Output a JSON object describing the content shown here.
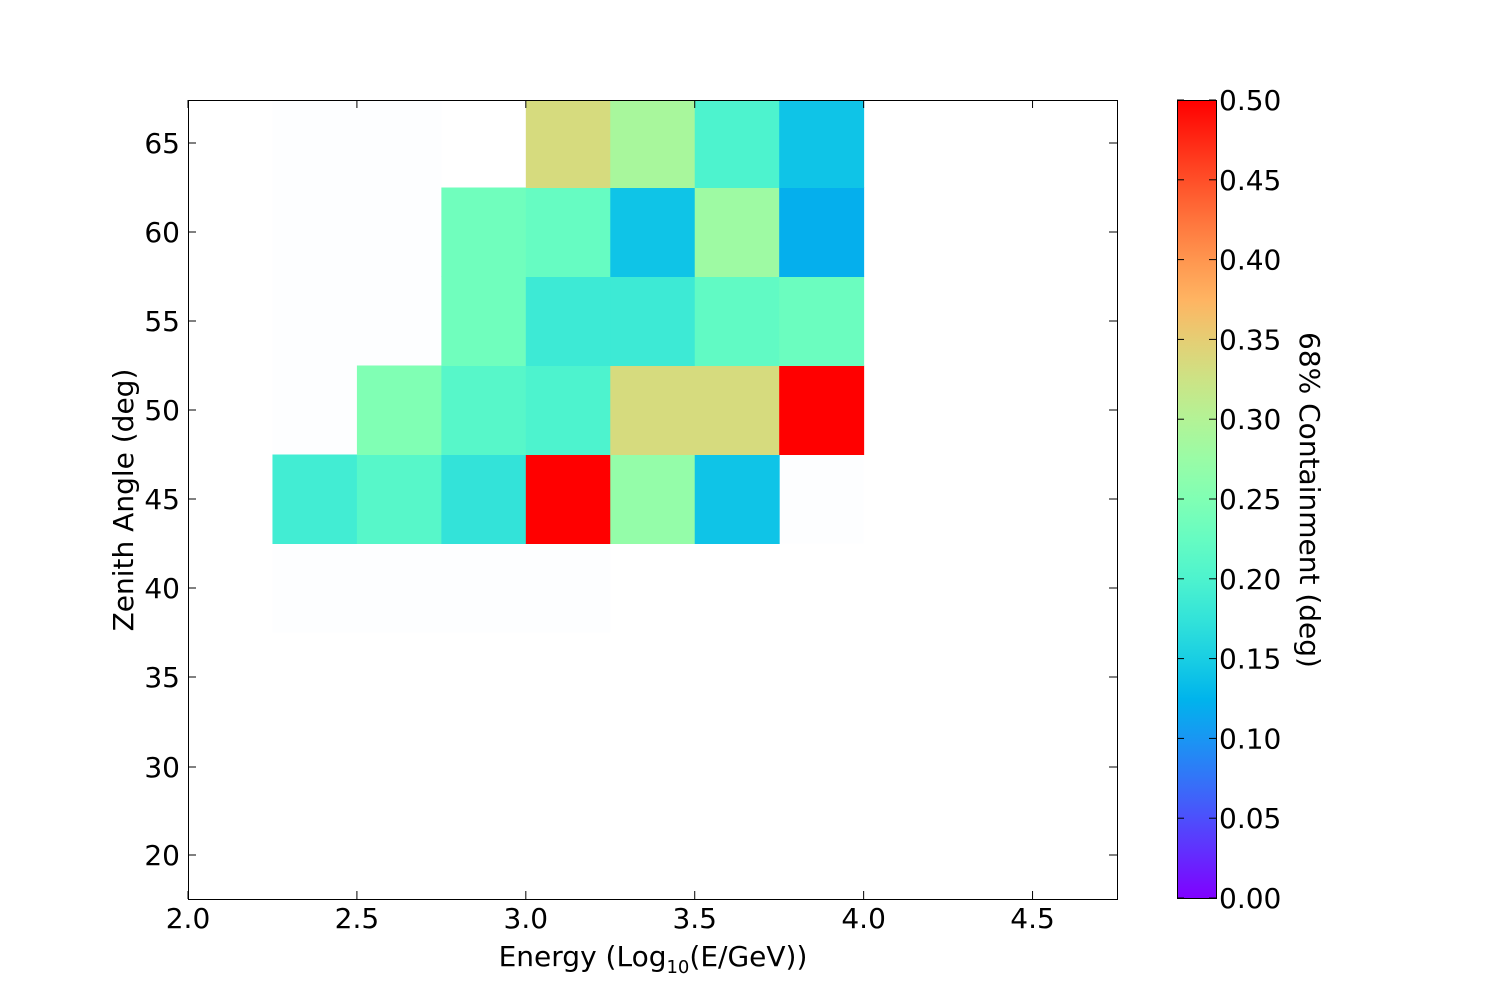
{
  "chart_data": {
    "type": "heatmap",
    "title": "",
    "xlabel_prefix": "Energy (Log",
    "xlabel_sub": "10",
    "xlabel_suffix": "(E/GeV))",
    "ylabel": "Zenith Angle (deg)",
    "colorbar_label": "68% Containment (deg)",
    "colormap": "rainbow",
    "color_range": [
      0.0,
      0.5
    ],
    "xlim": [
      2.0,
      4.75
    ],
    "x_ticks": [
      "2.0",
      "2.5",
      "3.0",
      "3.5",
      "4.0",
      "4.5"
    ],
    "y_axis_note": "non-uniform zenith axis",
    "y_ticks": [
      "20",
      "30",
      "35",
      "40",
      "45",
      "50",
      "55",
      "60",
      "65"
    ],
    "colorbar_ticks": [
      "0.00",
      "0.05",
      "0.10",
      "0.15",
      "0.20",
      "0.25",
      "0.30",
      "0.35",
      "0.40",
      "0.45",
      "0.50"
    ],
    "x_edges": [
      2.25,
      2.5,
      2.75,
      3.0,
      3.25,
      3.5,
      3.75,
      4.0
    ],
    "y_edges": [
      37.5,
      42.5,
      47.5,
      52.5,
      57.5,
      62.5,
      67.5
    ],
    "cells": [
      {
        "x": [
          2.25,
          2.5
        ],
        "y": [
          42.5,
          47.5
        ],
        "value": 0.19
      },
      {
        "x": [
          2.5,
          2.75
        ],
        "y": [
          42.5,
          47.5
        ],
        "value": 0.21
      },
      {
        "x": [
          2.75,
          3.0
        ],
        "y": [
          42.5,
          47.5
        ],
        "value": 0.175
      },
      {
        "x": [
          3.0,
          3.25
        ],
        "y": [
          42.5,
          47.5
        ],
        "value": 0.5
      },
      {
        "x": [
          3.25,
          3.5
        ],
        "y": [
          42.5,
          47.5
        ],
        "value": 0.27
      },
      {
        "x": [
          3.5,
          3.75
        ],
        "y": [
          42.5,
          47.5
        ],
        "value": 0.14
      },
      {
        "x": [
          2.5,
          2.75
        ],
        "y": [
          47.5,
          52.5
        ],
        "value": 0.25
      },
      {
        "x": [
          2.75,
          3.0
        ],
        "y": [
          47.5,
          52.5
        ],
        "value": 0.21
      },
      {
        "x": [
          3.0,
          3.25
        ],
        "y": [
          47.5,
          52.5
        ],
        "value": 0.2
      },
      {
        "x": [
          3.25,
          3.5
        ],
        "y": [
          47.5,
          52.5
        ],
        "value": 0.335
      },
      {
        "x": [
          3.5,
          3.75
        ],
        "y": [
          47.5,
          52.5
        ],
        "value": 0.335
      },
      {
        "x": [
          3.75,
          4.0
        ],
        "y": [
          47.5,
          52.5
        ],
        "value": 0.5
      },
      {
        "x": [
          2.75,
          3.0
        ],
        "y": [
          52.5,
          57.5
        ],
        "value": 0.235
      },
      {
        "x": [
          3.0,
          3.25
        ],
        "y": [
          52.5,
          57.5
        ],
        "value": 0.185
      },
      {
        "x": [
          3.25,
          3.5
        ],
        "y": [
          52.5,
          57.5
        ],
        "value": 0.185
      },
      {
        "x": [
          3.5,
          3.75
        ],
        "y": [
          52.5,
          57.5
        ],
        "value": 0.22
      },
      {
        "x": [
          3.75,
          4.0
        ],
        "y": [
          52.5,
          57.5
        ],
        "value": 0.23
      },
      {
        "x": [
          2.75,
          3.0
        ],
        "y": [
          57.5,
          62.5
        ],
        "value": 0.235
      },
      {
        "x": [
          3.0,
          3.25
        ],
        "y": [
          57.5,
          62.5
        ],
        "value": 0.225
      },
      {
        "x": [
          3.25,
          3.5
        ],
        "y": [
          57.5,
          62.5
        ],
        "value": 0.14
      },
      {
        "x": [
          3.5,
          3.75
        ],
        "y": [
          57.5,
          62.5
        ],
        "value": 0.28
      },
      {
        "x": [
          3.75,
          4.0
        ],
        "y": [
          57.5,
          62.5
        ],
        "value": 0.12
      },
      {
        "x": [
          3.0,
          3.25
        ],
        "y": [
          62.5,
          67.5
        ],
        "value": 0.335
      },
      {
        "x": [
          3.25,
          3.5
        ],
        "y": [
          62.5,
          67.5
        ],
        "value": 0.29
      },
      {
        "x": [
          3.5,
          3.75
        ],
        "y": [
          62.5,
          67.5
        ],
        "value": 0.2
      },
      {
        "x": [
          3.75,
          4.0
        ],
        "y": [
          62.5,
          67.5
        ],
        "value": 0.14
      }
    ],
    "near_zero_cells": [
      {
        "x": [
          2.25,
          3.0
        ],
        "y": [
          37.5,
          42.5
        ],
        "value": 0.0
      },
      {
        "x": [
          3.0,
          3.25
        ],
        "y": [
          37.5,
          42.5
        ],
        "value": 0.0
      },
      {
        "x": [
          3.75,
          4.0
        ],
        "y": [
          42.5,
          47.5
        ],
        "value": 0.0
      },
      {
        "x": [
          2.25,
          2.75
        ],
        "y": [
          47.5,
          67.5
        ],
        "value": 0.0
      }
    ]
  }
}
